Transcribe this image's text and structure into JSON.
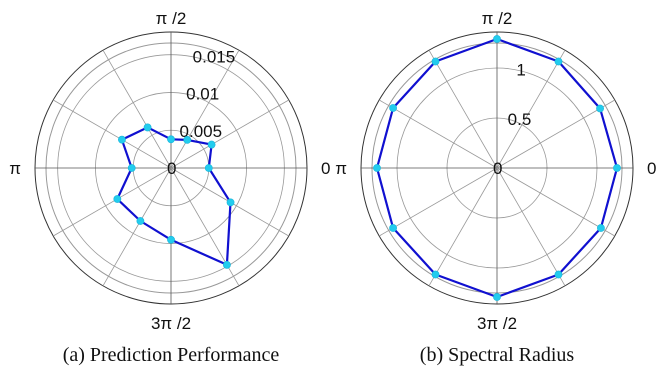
{
  "chart_data": [
    {
      "type": "polar-line",
      "caption": "(a) Prediction Performance",
      "rlim": [
        0,
        0.018
      ],
      "radial_ticks": [
        {
          "value": 0.005,
          "label": "0.005"
        },
        {
          "value": 0.01,
          "label": "0.01"
        },
        {
          "value": 0.015,
          "label": "0.015"
        }
      ],
      "center_label": "0",
      "angle_labels": {
        "right": "0",
        "top": "π /2",
        "left": "π",
        "bottom": "3π /2"
      },
      "angles_deg": [
        0,
        30,
        60,
        90,
        120,
        150,
        180,
        210,
        240,
        270,
        300,
        330
      ],
      "r": [
        0.005,
        0.0062,
        0.0043,
        0.0038,
        0.0062,
        0.0075,
        0.0052,
        0.0082,
        0.0081,
        0.0095,
        0.0148,
        0.0091
      ],
      "line_color": "#1010d0",
      "marker_color": "#22ccee",
      "grid": true
    },
    {
      "type": "polar-line",
      "caption": "(b) Spectral Radius",
      "rlim": [
        0,
        1.36
      ],
      "radial_ticks": [
        {
          "value": 0.5,
          "label": "0.5"
        },
        {
          "value": 1,
          "label": "1"
        }
      ],
      "center_label": "0",
      "angle_labels": {
        "right": "0",
        "top": "π /2",
        "left": "π",
        "bottom": "3π /2"
      },
      "angles_deg": [
        0,
        30,
        60,
        90,
        120,
        150,
        180,
        210,
        240,
        270,
        300,
        330
      ],
      "r": [
        1.2,
        1.19,
        1.23,
        1.29,
        1.23,
        1.2,
        1.2,
        1.2,
        1.23,
        1.29,
        1.23,
        1.2
      ],
      "line_color": "#1010d0",
      "marker_color": "#22ccee",
      "grid": true
    }
  ]
}
